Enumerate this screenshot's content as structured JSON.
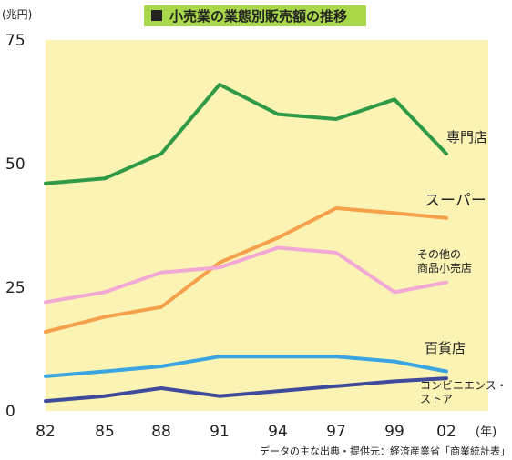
{
  "chart_data": {
    "type": "line",
    "title": "小売業の業態別販売額の推移",
    "title_box_color": "#a8d84a",
    "plot_bg_color": "#fbf3b4",
    "grid": false,
    "yunit": "(兆円)",
    "xunit": "(年)",
    "source": "データの主な出典・提供元：経済産業省「商業統計表」",
    "ylim": [
      0,
      75
    ],
    "yticks": [
      "0",
      "25",
      "50",
      "75"
    ],
    "x_ticks": [
      "82",
      "85",
      "88",
      "91",
      "94",
      "97",
      "99",
      "02"
    ],
    "series": [
      {
        "name": "専門店",
        "color": "#2f9a46",
        "x": [
          "82",
          "85",
          "88",
          "91",
          "94",
          "97",
          "99",
          "02"
        ],
        "values": [
          46,
          47,
          52,
          66,
          60,
          59,
          63,
          52
        ]
      },
      {
        "name": "スーパー",
        "color": "#f5a04a",
        "x": [
          "82",
          "85",
          "88",
          "91",
          "94",
          "97",
          "99",
          "02"
        ],
        "values": [
          16,
          19,
          21,
          30,
          35,
          41,
          40,
          39
        ]
      },
      {
        "name": "その他の\n商品小売店",
        "color": "#f2a8d4",
        "x": [
          "82",
          "85",
          "88",
          "91",
          "94",
          "97",
          "99",
          "02"
        ],
        "values": [
          22,
          24,
          28,
          29,
          33,
          32,
          24,
          26
        ]
      },
      {
        "name": "百貨店",
        "color": "#3aa5df",
        "x": [
          "82",
          "85",
          "88",
          "91",
          "94",
          "97",
          "99",
          "02"
        ],
        "values": [
          7,
          8,
          9,
          11,
          11,
          11,
          10,
          8
        ]
      },
      {
        "name": "コンビニエンス・\nストア",
        "color": "#3e4b9b",
        "x": [
          "82",
          "85",
          "88",
          "91",
          "94",
          "97",
          "99",
          "02"
        ],
        "values": [
          2,
          3,
          4.6,
          3,
          4,
          5,
          6,
          6.6
        ]
      }
    ]
  }
}
